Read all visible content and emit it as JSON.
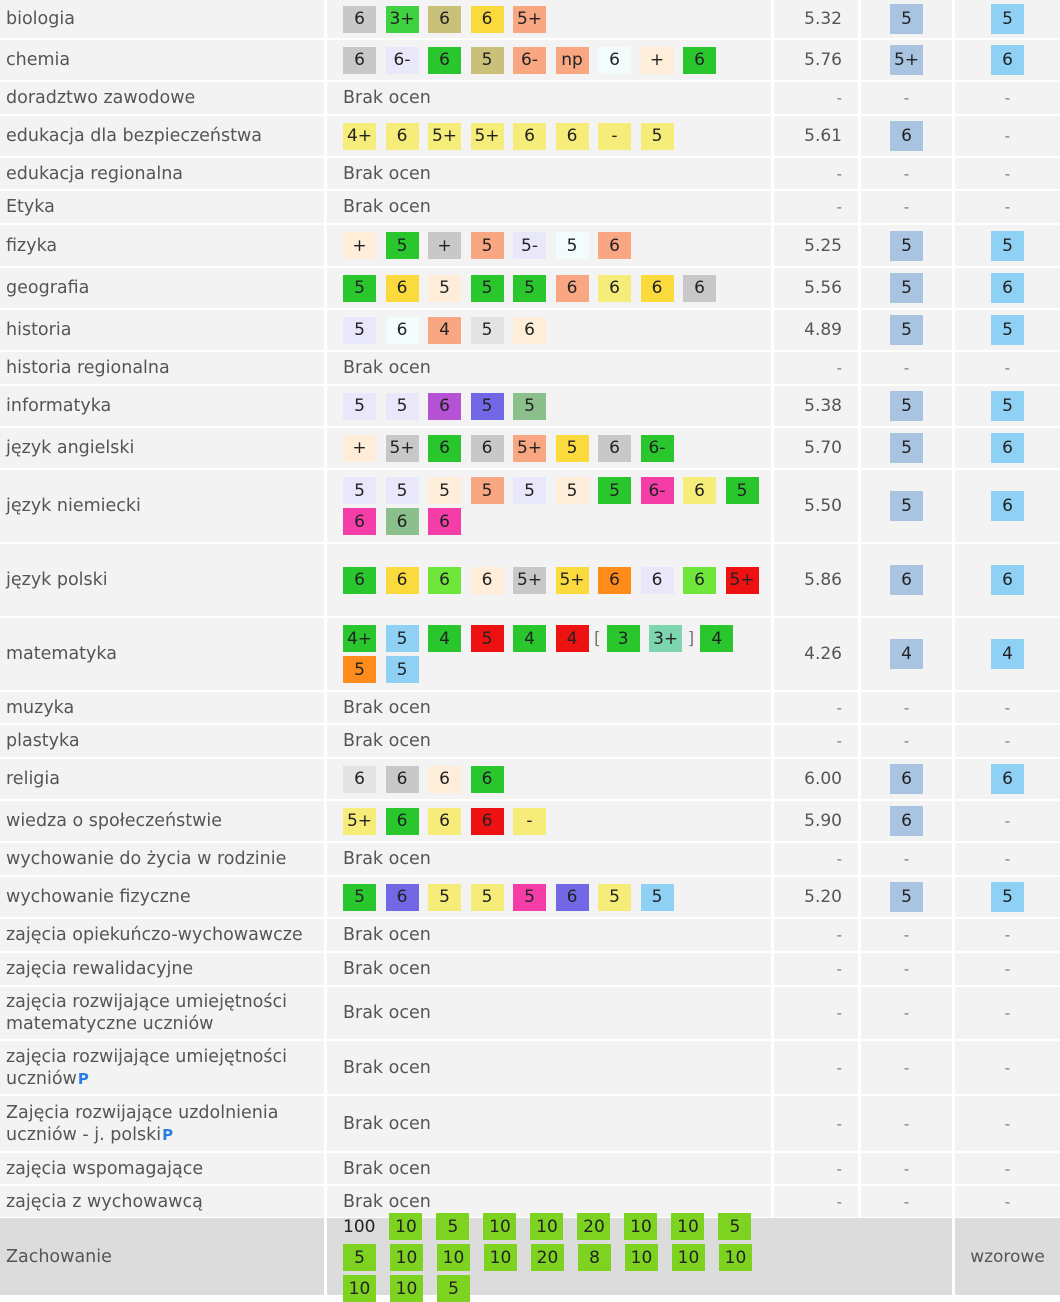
{
  "colors": {
    "row_bg": "#f3f3f3",
    "behavior_row_bg": "#dcdcdc",
    "predicted_badge": "#a9c4e1",
    "final_badge": "#8fd0f5",
    "p_icon": "#2a7de1"
  },
  "subjects": [
    {
      "name": "biologia",
      "grades": [
        {
          "v": "6",
          "c": "#c8c8c8"
        },
        {
          "v": "3+",
          "c": "#3fd13f"
        },
        {
          "v": "6",
          "c": "#c9c07a"
        },
        {
          "v": "6",
          "c": "#fada3c"
        },
        {
          "v": "5+",
          "c": "#f9a683"
        }
      ],
      "avg": "5.32",
      "pred": "5",
      "final": "5"
    },
    {
      "name": "chemia",
      "grades": [
        {
          "v": "6",
          "c": "#c8c8c8"
        },
        {
          "v": "6-",
          "c": "#e8e8fa"
        },
        {
          "v": "6",
          "c": "#29c62d"
        },
        {
          "v": "5",
          "c": "#c9c07a"
        },
        {
          "v": "6-",
          "c": "#f9a683"
        },
        {
          "v": "np",
          "c": "#f9a683"
        },
        {
          "v": "6",
          "c": "#f2fcfc"
        },
        {
          "v": "+",
          "c": "#feeed9"
        },
        {
          "v": "6",
          "c": "#29c62d"
        }
      ],
      "avg": "5.76",
      "pred": "5+",
      "final": "6"
    },
    {
      "name": "doradztwo zawodowe",
      "none": "Brak ocen",
      "avg": "-",
      "pred": "-",
      "final": "-"
    },
    {
      "name": "edukacja dla bezpieczeństwa",
      "grades": [
        {
          "v": "4+",
          "c": "#f6ec79"
        },
        {
          "v": "6",
          "c": "#f6ec79"
        },
        {
          "v": "5+",
          "c": "#f6ec79"
        },
        {
          "v": "5+",
          "c": "#f6ec79"
        },
        {
          "v": "6",
          "c": "#f6ec79"
        },
        {
          "v": "6",
          "c": "#f6ec79"
        },
        {
          "v": "-",
          "c": "#f6ec79"
        },
        {
          "v": "5",
          "c": "#f6ec79"
        }
      ],
      "avg": "5.61",
      "pred": "6",
      "final": "-"
    },
    {
      "name": "edukacja regionalna",
      "none": "Brak ocen",
      "avg": "-",
      "pred": "-",
      "final": "-"
    },
    {
      "name": "Etyka",
      "none": "Brak ocen",
      "avg": "-",
      "pred": "-",
      "final": "-"
    },
    {
      "name": "fizyka",
      "grades": [
        {
          "v": "+",
          "c": "#feeed9"
        },
        {
          "v": "5",
          "c": "#29c62d"
        },
        {
          "v": "+",
          "c": "#c8c8c8"
        },
        {
          "v": "5",
          "c": "#f9a683"
        },
        {
          "v": "5-",
          "c": "#e8e8fa"
        },
        {
          "v": "5",
          "c": "#f2fcfc"
        },
        {
          "v": "6",
          "c": "#f9a683"
        }
      ],
      "avg": "5.25",
      "pred": "5",
      "final": "5"
    },
    {
      "name": "geografia",
      "grades": [
        {
          "v": "5",
          "c": "#29c62d"
        },
        {
          "v": "6",
          "c": "#fada3c"
        },
        {
          "v": "5",
          "c": "#feeed9"
        },
        {
          "v": "5",
          "c": "#29c62d"
        },
        {
          "v": "5",
          "c": "#29c62d"
        },
        {
          "v": "6",
          "c": "#f9a683"
        },
        {
          "v": "6",
          "c": "#f6ec79"
        },
        {
          "v": "6",
          "c": "#fada3c"
        },
        {
          "v": "6",
          "c": "#c8c8c8"
        }
      ],
      "avg": "5.56",
      "pred": "5",
      "final": "6"
    },
    {
      "name": "historia",
      "grades": [
        {
          "v": "5",
          "c": "#e8e8fa"
        },
        {
          "v": "6",
          "c": "#f2fcfc"
        },
        {
          "v": "4",
          "c": "#f9a683"
        },
        {
          "v": "5",
          "c": "#e3e3e3"
        },
        {
          "v": "6",
          "c": "#feeed9"
        }
      ],
      "avg": "4.89",
      "pred": "5",
      "final": "5"
    },
    {
      "name": "historia regionalna",
      "none": "Brak ocen",
      "avg": "-",
      "pred": "-",
      "final": "-"
    },
    {
      "name": "informatyka",
      "grades": [
        {
          "v": "5",
          "c": "#e8e8fa"
        },
        {
          "v": "5",
          "c": "#e8e8fa"
        },
        {
          "v": "6",
          "c": "#b552d6"
        },
        {
          "v": "5",
          "c": "#7268e6"
        },
        {
          "v": "5",
          "c": "#8bbf8b"
        }
      ],
      "avg": "5.38",
      "pred": "5",
      "final": "5"
    },
    {
      "name": "język angielski",
      "grades": [
        {
          "v": "+",
          "c": "#feeed9"
        },
        {
          "v": "5+",
          "c": "#c8c8c8"
        },
        {
          "v": "6",
          "c": "#29c62d"
        },
        {
          "v": "6",
          "c": "#c8c8c8"
        },
        {
          "v": "5+",
          "c": "#f9a683"
        },
        {
          "v": "5",
          "c": "#fada3c"
        },
        {
          "v": "6",
          "c": "#c8c8c8"
        },
        {
          "v": "6-",
          "c": "#29c62d"
        }
      ],
      "avg": "5.70",
      "pred": "5",
      "final": "6"
    },
    {
      "name": "język niemiecki",
      "grades": [
        {
          "v": "5",
          "c": "#e8e8fa"
        },
        {
          "v": "5",
          "c": "#e8e8fa"
        },
        {
          "v": "5",
          "c": "#feeed9"
        },
        {
          "v": "5",
          "c": "#f9a683"
        },
        {
          "v": "5",
          "c": "#e8e8fa"
        },
        {
          "v": "5",
          "c": "#feeed9"
        },
        {
          "v": "5",
          "c": "#29c62d"
        },
        {
          "v": "6-",
          "c": "#f53da8"
        },
        {
          "v": "6",
          "c": "#f6ec79"
        },
        {
          "v": "5",
          "c": "#29c62d"
        },
        {
          "v": "6",
          "c": "#f53da8"
        },
        {
          "v": "6",
          "c": "#8bbf8b"
        },
        {
          "v": "6",
          "c": "#f53da8"
        }
      ],
      "avg": "5.50",
      "pred": "5",
      "final": "6"
    },
    {
      "name": "język polski",
      "grades": [
        {
          "v": "6",
          "c": "#29c62d"
        },
        {
          "v": "6",
          "c": "#fada3c"
        },
        {
          "v": "6",
          "c": "#6fe63a"
        },
        {
          "v": "6",
          "c": "#feeed9"
        },
        {
          "v": "5+",
          "c": "#c8c8c8"
        },
        {
          "v": "5+",
          "c": "#fada3c"
        },
        {
          "v": "6",
          "c": "#ff8c1a"
        },
        {
          "v": "6",
          "c": "#e8e8fa"
        },
        {
          "v": "6",
          "c": "#6fe63a"
        },
        {
          "v": "5+",
          "c": "#ee1111"
        }
      ],
      "avg": "5.86",
      "pred": "6",
      "final": "6"
    },
    {
      "name": "matematyka",
      "grades": [
        {
          "v": "4+",
          "c": "#29c62d"
        },
        {
          "v": "5",
          "c": "#8fd0f5"
        },
        {
          "v": "4",
          "c": "#29c62d"
        },
        {
          "v": "5",
          "c": "#ee1111"
        },
        {
          "v": "4",
          "c": "#29c62d"
        },
        {
          "v": "4",
          "c": "#ee1111"
        },
        {
          "v": "[",
          "c": "bracket"
        },
        {
          "v": "3",
          "c": "#29c62d"
        },
        {
          "v": "3+",
          "c": "#7ed6b1"
        },
        {
          "v": "]",
          "c": "bracket"
        },
        {
          "v": "4",
          "c": "#29c62d"
        },
        {
          "v": "5",
          "c": "#ff8c1a"
        },
        {
          "v": "5",
          "c": "#8fd0f5"
        }
      ],
      "avg": "4.26",
      "pred": "4",
      "final": "4"
    },
    {
      "name": "muzyka",
      "none": "Brak ocen",
      "avg": "-",
      "pred": "-",
      "final": "-"
    },
    {
      "name": "plastyka",
      "none": "Brak ocen",
      "avg": "-",
      "pred": "-",
      "final": "-"
    },
    {
      "name": "religia",
      "grades": [
        {
          "v": "6",
          "c": "#e3e3e3"
        },
        {
          "v": "6",
          "c": "#c8c8c8"
        },
        {
          "v": "6",
          "c": "#feeed9"
        },
        {
          "v": "6",
          "c": "#29c62d"
        }
      ],
      "avg": "6.00",
      "pred": "6",
      "final": "6"
    },
    {
      "name": "wiedza o społeczeństwie",
      "grades": [
        {
          "v": "5+",
          "c": "#f6ec79"
        },
        {
          "v": "6",
          "c": "#29c62d"
        },
        {
          "v": "6",
          "c": "#f6ec79"
        },
        {
          "v": "6",
          "c": "#ee1111"
        },
        {
          "v": "-",
          "c": "#f6ec79"
        }
      ],
      "avg": "5.90",
      "pred": "6",
      "final": "-"
    },
    {
      "name": "wychowanie do życia w rodzinie",
      "none": "Brak ocen",
      "avg": "-",
      "pred": "-",
      "final": "-"
    },
    {
      "name": "wychowanie fizyczne",
      "grades": [
        {
          "v": "5",
          "c": "#29c62d"
        },
        {
          "v": "6",
          "c": "#7268e6"
        },
        {
          "v": "5",
          "c": "#f6ec79"
        },
        {
          "v": "5",
          "c": "#f6ec79"
        },
        {
          "v": "5",
          "c": "#f53da8"
        },
        {
          "v": "6",
          "c": "#7268e6"
        },
        {
          "v": "5",
          "c": "#f6ec79"
        },
        {
          "v": "5",
          "c": "#8fd0f5"
        }
      ],
      "avg": "5.20",
      "pred": "5",
      "final": "5"
    },
    {
      "name": "zajęcia opiekuńczo-wychowawcze",
      "none": "Brak ocen",
      "avg": "-",
      "pred": "-",
      "final": "-"
    },
    {
      "name": "zajęcia rewalidacyjne",
      "none": "Brak ocen",
      "avg": "-",
      "pred": "-",
      "final": "-"
    },
    {
      "name": "zajęcia rozwijające umiejętności matematyczne uczniów",
      "none": "Brak ocen",
      "avg": "-",
      "pred": "-",
      "final": "-"
    },
    {
      "name": "zajęcia rozwijające umiejętności uczniów",
      "p_icon": "P",
      "none": "Brak ocen",
      "avg": "-",
      "pred": "-",
      "final": "-"
    },
    {
      "name": "Zajęcia rozwijające uzdolnienia uczniów - j. polski",
      "p_icon": "P",
      "none": "Brak ocen",
      "avg": "-",
      "pred": "-",
      "final": "-"
    },
    {
      "name": "zajęcia wspomagające",
      "none": "Brak ocen",
      "avg": "-",
      "pred": "-",
      "final": "-"
    },
    {
      "name": "zajęcia z wychowawcą",
      "none": "Brak ocen",
      "avg": "-",
      "pred": "-",
      "final": "-"
    }
  ],
  "behavior": {
    "name": "Zachowanie",
    "points": [
      "100",
      "10",
      "5",
      "10",
      "10",
      "20",
      "10",
      "10",
      "5",
      "5",
      "10",
      "10",
      "10",
      "20",
      "8",
      "10",
      "10",
      "10",
      "10",
      "10",
      "5"
    ],
    "point_color": "#7ed321",
    "final": "wzorowe"
  }
}
